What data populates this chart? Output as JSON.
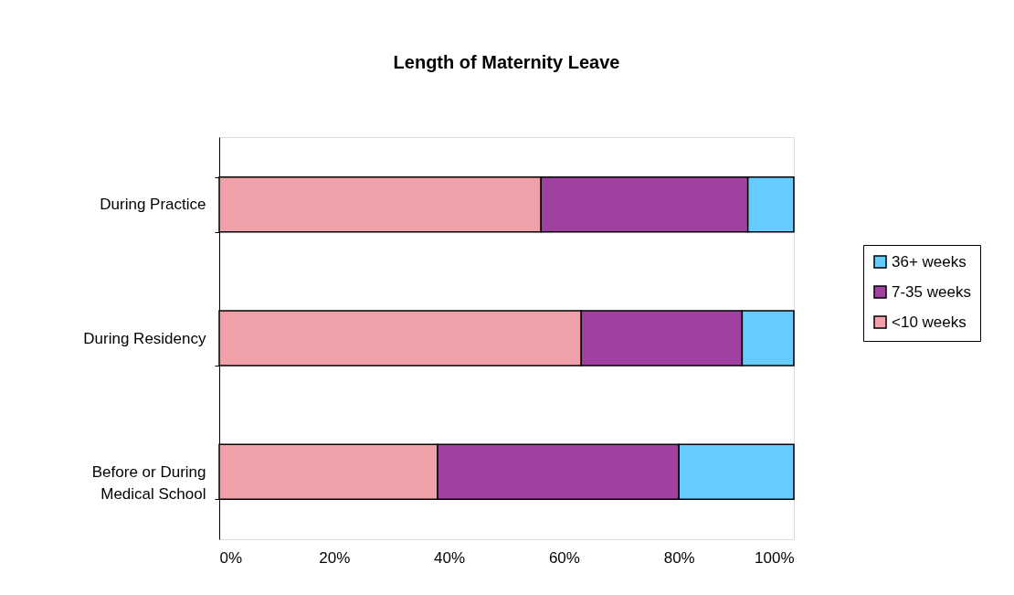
{
  "chart_data": {
    "type": "bar",
    "orientation": "horizontal",
    "stacked": true,
    "title": "Length of Maternity Leave",
    "categories": [
      "During Practice",
      "During Residency",
      "Before or During Medical School"
    ],
    "series": [
      {
        "name": "<10 weeks",
        "color": "#f0a0a8",
        "values": [
          56,
          63,
          38
        ]
      },
      {
        "name": "7-35 weeks",
        "color": "#a040a0",
        "values": [
          36,
          28,
          42
        ]
      },
      {
        "name": "36+ weeks",
        "color": "#66ccff",
        "values": [
          8,
          9,
          20
        ]
      }
    ],
    "xlim": [
      0,
      100
    ],
    "xticks": [
      {
        "value": 0,
        "label": "0%"
      },
      {
        "value": 20,
        "label": "20%"
      },
      {
        "value": 40,
        "label": "40%"
      },
      {
        "value": 60,
        "label": "60%"
      },
      {
        "value": 80,
        "label": "80%"
      },
      {
        "value": 100,
        "label": "100%"
      }
    ],
    "grid": false,
    "legend": "right"
  }
}
